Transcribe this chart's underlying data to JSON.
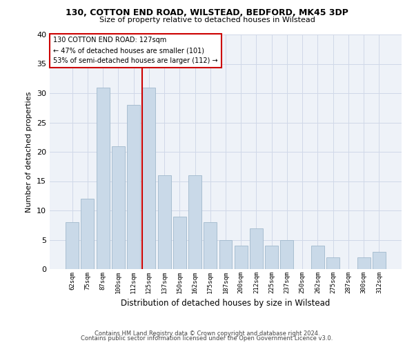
{
  "title1": "130, COTTON END ROAD, WILSTEAD, BEDFORD, MK45 3DP",
  "title2": "Size of property relative to detached houses in Wilstead",
  "xlabel": "Distribution of detached houses by size in Wilstead",
  "ylabel": "Number of detached properties",
  "categories": [
    "62sqm",
    "75sqm",
    "87sqm",
    "100sqm",
    "112sqm",
    "125sqm",
    "137sqm",
    "150sqm",
    "162sqm",
    "175sqm",
    "187sqm",
    "200sqm",
    "212sqm",
    "225sqm",
    "237sqm",
    "250sqm",
    "262sqm",
    "275sqm",
    "287sqm",
    "300sqm",
    "312sqm"
  ],
  "values": [
    8,
    12,
    31,
    21,
    28,
    31,
    16,
    9,
    16,
    8,
    5,
    4,
    7,
    4,
    5,
    0,
    4,
    2,
    0,
    2,
    3
  ],
  "bar_color": "#c9d9e8",
  "bar_edge_color": "#a0b8cc",
  "vline_color": "#cc0000",
  "vline_index": 5,
  "annotation_line1": "130 COTTON END ROAD: 127sqm",
  "annotation_line2": "← 47% of detached houses are smaller (101)",
  "annotation_line3": "53% of semi-detached houses are larger (112) →",
  "annotation_box_color": "#ffffff",
  "annotation_box_edge": "#cc0000",
  "grid_color": "#d0d8e8",
  "background_color": "#eef2f8",
  "ylim": [
    0,
    40
  ],
  "yticks": [
    0,
    5,
    10,
    15,
    20,
    25,
    30,
    35,
    40
  ],
  "footer1": "Contains HM Land Registry data © Crown copyright and database right 2024.",
  "footer2": "Contains public sector information licensed under the Open Government Licence v3.0."
}
